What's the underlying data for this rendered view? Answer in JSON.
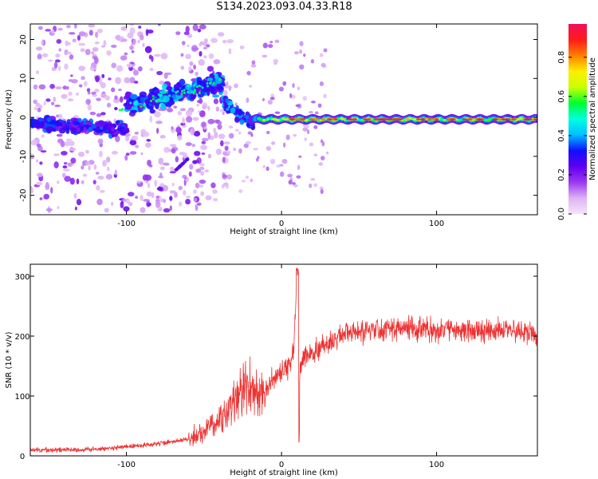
{
  "title": "S134.2023.093.04.33.R18",
  "chart_data": [
    {
      "type": "heatmap",
      "xlabel": "Height of straight line (km)",
      "ylabel": "Frequency (Hz)",
      "xlim": [
        -162,
        165
      ],
      "ylim": [
        -25,
        24
      ],
      "xticks": [
        -100,
        0,
        100
      ],
      "yticks": [
        -20,
        -10,
        0,
        10,
        20
      ],
      "colorbar": {
        "label": "Normalized spectral amplitude",
        "range": [
          0.0,
          0.97
        ],
        "ticks": [
          0.0,
          0.2,
          0.4,
          0.6,
          0.8
        ],
        "tick_labels": [
          "0.0",
          "0.2",
          "0.4",
          "0.6",
          "0.8"
        ],
        "colormap": [
          "#f4e4f8",
          "#ddb3f5",
          "#9b38f0",
          "#5e00f0",
          "#1010ff",
          "#00bfff",
          "#00ffe0",
          "#00ff30",
          "#c8ff00",
          "#ffee00",
          "#ff8000",
          "#ff1a1a",
          "#f0105a"
        ]
      },
      "features": [
        {
          "x": [
            -162,
            -100
          ],
          "freq": [
            -1.5,
            -3
          ],
          "amplitude": 0.3
        },
        {
          "x": [
            -100,
            -45
          ],
          "freq": [
            3,
            10
          ],
          "amplitude": 0.35
        },
        {
          "x": [
            -65,
            -60
          ],
          "freq": [
            -12,
            -11
          ],
          "amplitude": 0.25
        },
        {
          "x": [
            -20,
            165
          ],
          "freq": [
            -0.5,
            -0.5
          ],
          "amplitude": 0.7
        }
      ]
    },
    {
      "type": "line",
      "xlabel": "Height of straight line (km)",
      "ylabel": "SNR (10 * v/v)",
      "xlim": [
        -162,
        165
      ],
      "ylim": [
        0,
        320
      ],
      "xticks": [
        -100,
        0,
        100
      ],
      "yticks": [
        0,
        100,
        200,
        300
      ],
      "color": "#ee3333",
      "x": [
        -162,
        -140,
        -120,
        -100,
        -80,
        -60,
        -50,
        -40,
        -30,
        -25,
        -20,
        -15,
        -10,
        -5,
        0,
        5,
        8,
        10,
        11,
        12,
        15,
        20,
        30,
        40,
        60,
        80,
        100,
        120,
        140,
        165
      ],
      "y": [
        10,
        10,
        11,
        15,
        20,
        28,
        40,
        60,
        90,
        110,
        120,
        100,
        110,
        130,
        140,
        150,
        180,
        310,
        20,
        150,
        170,
        175,
        185,
        205,
        210,
        215,
        210,
        210,
        210,
        205
      ]
    }
  ]
}
